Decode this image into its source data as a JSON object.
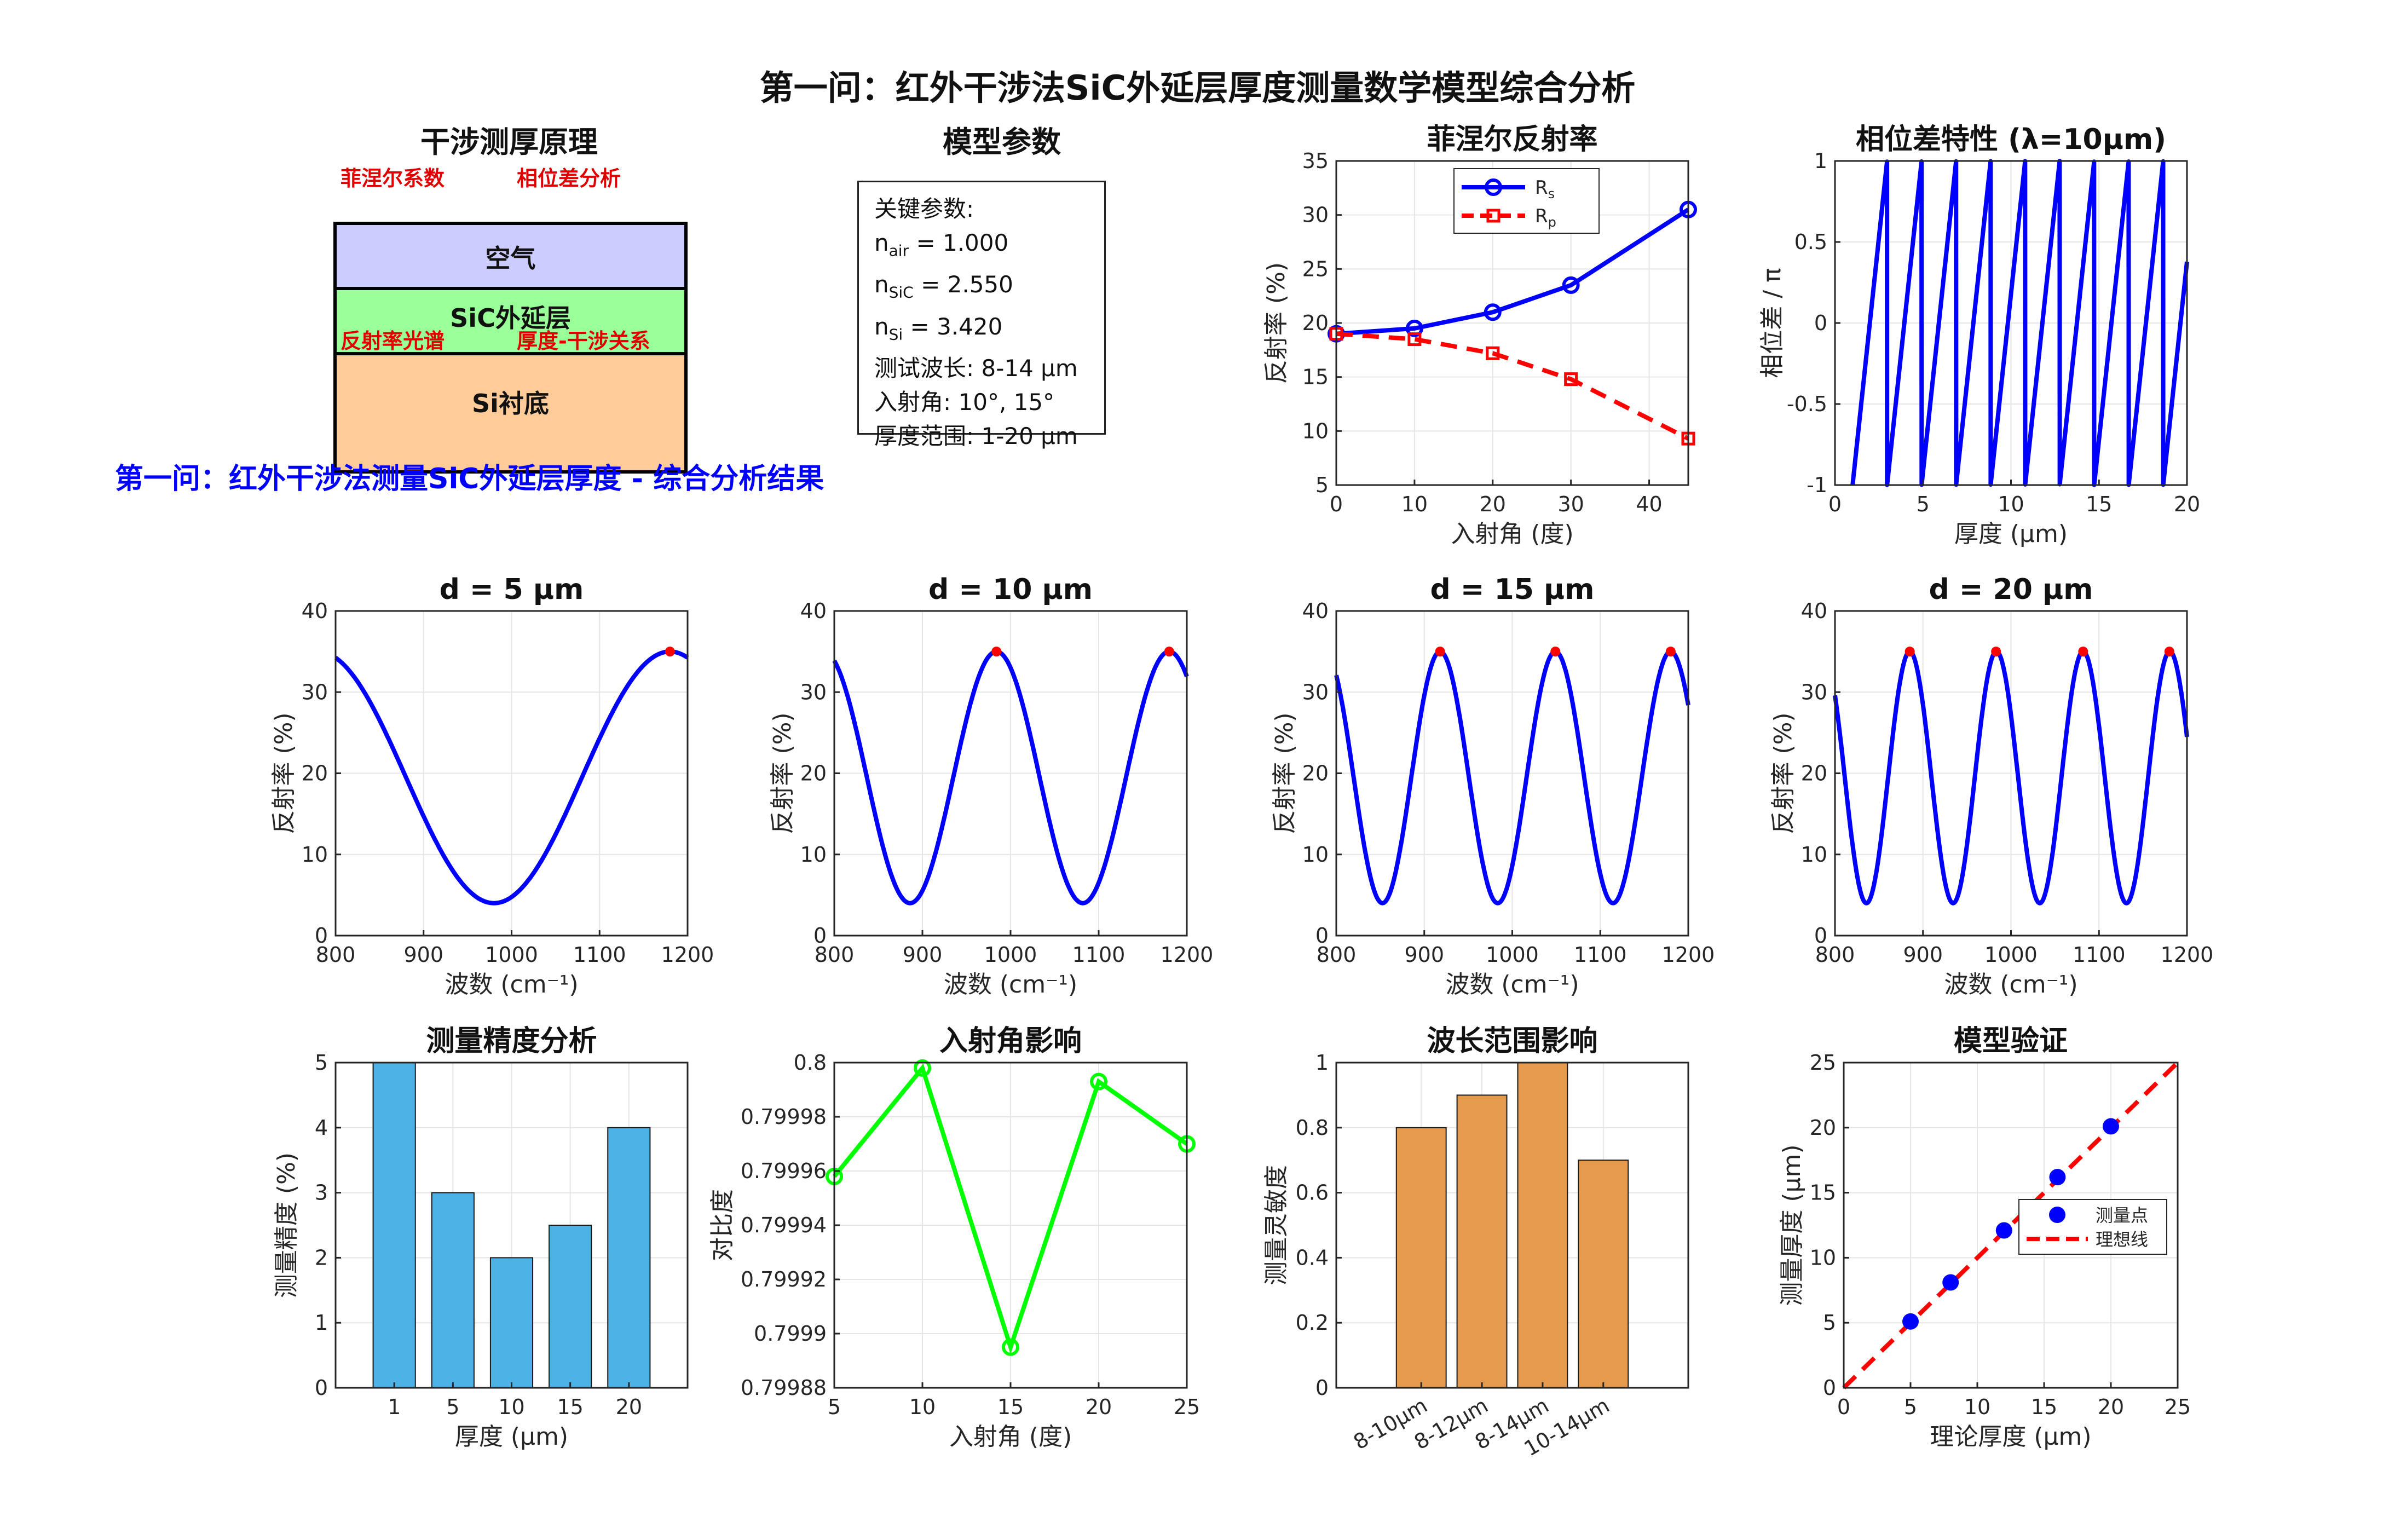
{
  "figure": {
    "suptitle": "第一问：红外干涉法SiC外延层厚度测量数学模型综合分析",
    "overlay_title": "第一问：红外干涉法测量SiC外延层厚度 - 综合分析结果"
  },
  "principle_panel": {
    "title": "干涉测厚原理",
    "labels": [
      "菲涅尔系数",
      "相位差分析",
      "反射率光谱",
      "厚度-干涉关系"
    ],
    "layers": [
      {
        "name": "空气",
        "color": "#ccccff"
      },
      {
        "name": "SiC外延层",
        "color": "#99ff99"
      },
      {
        "name": "Si衬底",
        "color": "#ffcc99"
      }
    ]
  },
  "params_panel": {
    "title": "模型参数",
    "heading": "关键参数:",
    "lines": [
      {
        "name": "n",
        "sub": "air",
        "value": "=  1.000"
      },
      {
        "name": "n",
        "sub": "SiC",
        "value": "=  2.550"
      },
      {
        "name": "n",
        "sub": "Si",
        "value": "=  3.420"
      }
    ],
    "extra": [
      "测试波长:  8-14  μm",
      "入射角:  10°,  15°",
      "厚度范围:  1-20  μm"
    ]
  },
  "chart_data": [
    {
      "id": "fresnel",
      "type": "line",
      "title": "菲涅尔反射率",
      "xlabel": "入射角 (度)",
      "ylabel": "反射率 (%)",
      "xlim": [
        0,
        45
      ],
      "ylim": [
        5,
        35
      ],
      "xticks": [
        0,
        10,
        20,
        30,
        40
      ],
      "yticks": [
        5,
        10,
        15,
        20,
        25,
        30,
        35
      ],
      "x": [
        0,
        10,
        20,
        30,
        45
      ],
      "series": [
        {
          "name": "R",
          "sub": "s",
          "values": [
            19.0,
            19.5,
            21.0,
            23.5,
            30.5
          ],
          "color": "#0000ff",
          "style": "solid",
          "marker": "circle"
        },
        {
          "name": "R",
          "sub": "p",
          "values": [
            19.0,
            18.5,
            17.2,
            14.8,
            9.3
          ],
          "color": "#ff0000",
          "style": "dashed",
          "marker": "square"
        }
      ],
      "legend": "top"
    },
    {
      "id": "phase",
      "type": "line",
      "title": "相位差特性 (λ=10μm)",
      "xlabel": "厚度 (μm)",
      "ylabel": "相位差 / π",
      "xlim": [
        0,
        20
      ],
      "ylim": [
        -1,
        1
      ],
      "xticks": [
        0,
        5,
        10,
        15,
        20
      ],
      "yticks": [
        -1,
        -0.5,
        0,
        0.5,
        1
      ],
      "generator": {
        "kind": "sawtooth",
        "x_start": 1,
        "x_end": 20,
        "period": 1.961,
        "phase_at_start": -1
      },
      "color": "#0000ff"
    },
    {
      "id": "d5",
      "type": "line",
      "title": "d = 5 μm",
      "xlabel": "波数 (cm⁻¹)",
      "ylabel": "反射率 (%)",
      "xlim": [
        800,
        1200
      ],
      "ylim": [
        0,
        40
      ],
      "xticks": [
        800,
        900,
        1000,
        1100,
        1200
      ],
      "yticks": [
        0,
        10,
        20,
        30,
        40
      ],
      "generator": {
        "kind": "cosine",
        "mean": 19.5,
        "amp": 15.5,
        "period": 400,
        "peak_at": 1180
      },
      "peaks": [
        1180
      ],
      "peak_value": 35,
      "color": "#0000ff"
    },
    {
      "id": "d10",
      "type": "line",
      "title": "d = 10 μm",
      "xlabel": "波数 (cm⁻¹)",
      "ylabel": "反射率 (%)",
      "xlim": [
        800,
        1200
      ],
      "ylim": [
        0,
        40
      ],
      "xticks": [
        800,
        900,
        1000,
        1100,
        1200
      ],
      "yticks": [
        0,
        10,
        20,
        30,
        40
      ],
      "generator": {
        "kind": "cosine",
        "mean": 19.5,
        "amp": 15.5,
        "period": 196,
        "peak_at": 984
      },
      "peaks": [
        984,
        1180
      ],
      "peak_value": 35,
      "color": "#0000ff"
    },
    {
      "id": "d15",
      "type": "line",
      "title": "d = 15 μm",
      "xlabel": "波数 (cm⁻¹)",
      "ylabel": "反射率 (%)",
      "xlim": [
        800,
        1200
      ],
      "ylim": [
        0,
        40
      ],
      "xticks": [
        800,
        900,
        1000,
        1100,
        1200
      ],
      "yticks": [
        0,
        10,
        20,
        30,
        40
      ],
      "generator": {
        "kind": "cosine",
        "mean": 19.5,
        "amp": 15.5,
        "period": 131,
        "peak_at": 918
      },
      "peaks": [
        918,
        1049,
        1180
      ],
      "peak_value": 35,
      "color": "#0000ff"
    },
    {
      "id": "d20",
      "type": "line",
      "title": "d = 20 μm",
      "xlabel": "波数 (cm⁻¹)",
      "ylabel": "反射率 (%)",
      "xlim": [
        800,
        1200
      ],
      "ylim": [
        0,
        40
      ],
      "xticks": [
        800,
        900,
        1000,
        1100,
        1200
      ],
      "yticks": [
        0,
        10,
        20,
        30,
        40
      ],
      "generator": {
        "kind": "cosine",
        "mean": 19.5,
        "amp": 15.5,
        "period": 98.5,
        "peak_at": 885
      },
      "peaks": [
        885,
        983,
        1082,
        1180
      ],
      "peak_value": 35,
      "color": "#0000ff"
    },
    {
      "id": "precision",
      "type": "bar",
      "title": "测量精度分析",
      "xlabel": "厚度 (μm)",
      "ylabel": "测量精度 (%)",
      "categories": [
        "1",
        "5",
        "10",
        "15",
        "20"
      ],
      "values": [
        5,
        3,
        2,
        2.5,
        4
      ],
      "ylim": [
        0,
        5
      ],
      "yticks": [
        0,
        1,
        2,
        3,
        4,
        5
      ],
      "color": "#4db2e6"
    },
    {
      "id": "angle",
      "type": "line",
      "title": "入射角影响",
      "xlabel": "入射角 (度)",
      "ylabel": "对比度",
      "xlim": [
        5,
        25
      ],
      "ylim": [
        0.79988,
        0.8
      ],
      "xticks": [
        5,
        10,
        15,
        20,
        25
      ],
      "yticks": [
        0.79988,
        0.7999,
        0.79992,
        0.79994,
        0.79996,
        0.79998,
        0.8
      ],
      "ytick_labels": [
        "0.79988",
        "0.7999",
        "0.79992",
        "0.79994",
        "0.79996",
        "0.79998",
        "0.8"
      ],
      "x": [
        5,
        10,
        15,
        20,
        25
      ],
      "values": [
        0.799958,
        0.799998,
        0.799895,
        0.799993,
        0.79997
      ],
      "color": "#00ff00"
    },
    {
      "id": "wavelength",
      "type": "bar",
      "title": "波长范围影响",
      "xlabel": "",
      "ylabel": "测量灵敏度",
      "categories": [
        "8-10μm",
        "8-12μm",
        "8-14μm",
        "10-14μm"
      ],
      "values": [
        0.8,
        0.9,
        1.0,
        0.7
      ],
      "ylim": [
        0,
        1
      ],
      "yticks": [
        0,
        0.2,
        0.4,
        0.6,
        0.8,
        1
      ],
      "color": "#e69a4d"
    },
    {
      "id": "validation",
      "type": "scatter",
      "title": "模型验证",
      "xlabel": "理论厚度 (μm)",
      "ylabel": "测量厚度 (μm)",
      "xlim": [
        0,
        25
      ],
      "ylim": [
        0,
        25
      ],
      "xticks": [
        0,
        5,
        10,
        15,
        20,
        25
      ],
      "yticks": [
        0,
        5,
        10,
        15,
        20,
        25
      ],
      "x": [
        5,
        8,
        12,
        16,
        20
      ],
      "values": [
        5.1,
        8.1,
        12.1,
        16.2,
        20.1
      ],
      "series": [
        {
          "name": "测量点",
          "color": "#0000ff"
        },
        {
          "name": "理想线",
          "color": "#ff0000"
        }
      ],
      "legend": "right"
    }
  ]
}
